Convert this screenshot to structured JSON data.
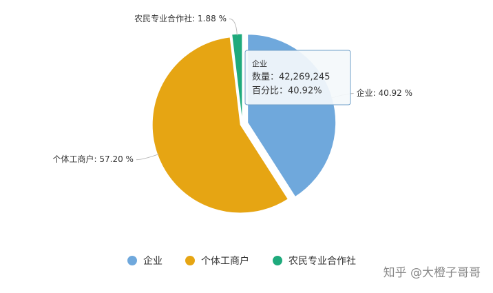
{
  "chart_data": {
    "type": "pie",
    "categories": [
      "企业",
      "个体工商户",
      "农民专业合作社"
    ],
    "values": [
      40.92,
      57.2,
      1.88
    ],
    "value_labels": [
      "企业: 40.92 %",
      "个体工商户: 57.20 %",
      "农民专业合作社: 1.88 %"
    ],
    "colors": [
      "#6fa8dc",
      "#e6a513",
      "#1faa7c"
    ],
    "legend": "bottom",
    "tooltip": {
      "title": "企业",
      "lines": [
        "数量：42,269,245",
        "百分比：40.92%"
      ]
    },
    "watermark": "知乎 @大橙子哥哥"
  }
}
